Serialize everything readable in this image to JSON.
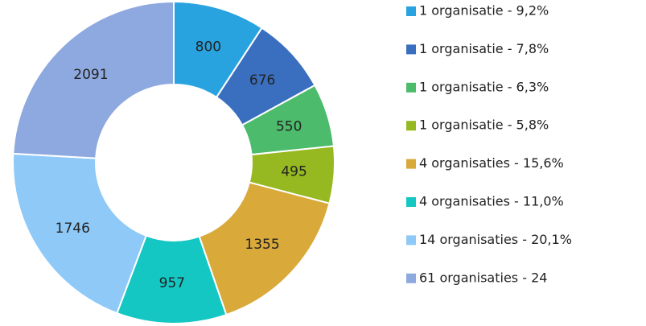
{
  "chart_data": {
    "type": "donut",
    "categories": [
      "1 organisatie - 9,2%",
      "1 organisatie - 7,8%",
      "1 organisatie - 6,3%",
      "1 organisatie - 5,8%",
      "4 organisaties - 15,6%",
      "4 organisaties - 11,0%",
      "14 organisaties - 20,1%",
      "61 organisaties - 24"
    ],
    "values": [
      800,
      676,
      550,
      495,
      1355,
      957,
      1746,
      2091
    ],
    "colors": [
      "#29a3e0",
      "#3a6fbf",
      "#4cbb6c",
      "#96b820",
      "#d9a93a",
      "#14c7c3",
      "#8ec9f7",
      "#8ea9df"
    ],
    "legend": "right"
  }
}
